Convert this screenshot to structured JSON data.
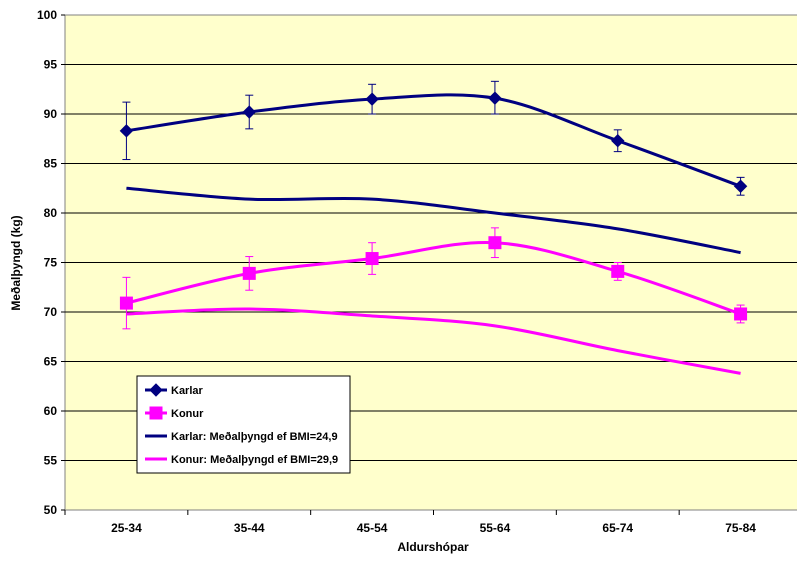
{
  "chart_data": {
    "type": "line",
    "title": "",
    "xlabel": "Aldurshópar",
    "ylabel": "Meðalþyngd (kg)",
    "categories": [
      "25-34",
      "35-44",
      "45-54",
      "55-64",
      "65-74",
      "75-84"
    ],
    "ylim": [
      50,
      100
    ],
    "yticks": [
      50,
      55,
      60,
      65,
      70,
      75,
      80,
      85,
      90,
      95,
      100
    ],
    "grid": true,
    "legend_placement": "bottom-left",
    "series": [
      {
        "name": "Karlar",
        "values": [
          88.3,
          90.2,
          91.5,
          91.6,
          87.3,
          82.7
        ],
        "error_low": [
          85.4,
          88.5,
          90.0,
          90.0,
          86.2,
          81.8
        ],
        "error_high": [
          91.2,
          91.9,
          93.0,
          93.3,
          88.4,
          83.6
        ],
        "color": "#000080",
        "marker": "diamond"
      },
      {
        "name": "Konur",
        "values": [
          70.9,
          73.9,
          75.4,
          77.0,
          74.1,
          69.8
        ],
        "error_low": [
          68.3,
          72.2,
          73.8,
          75.5,
          73.2,
          68.9
        ],
        "error_high": [
          73.5,
          75.6,
          77.0,
          78.5,
          75.0,
          70.7
        ],
        "color": "#FF00FF",
        "marker": "square"
      },
      {
        "name": "Karlar: Meðalþyngd ef BMI=24,9",
        "values": [
          82.5,
          81.4,
          81.4,
          80.0,
          78.4,
          76.0
        ],
        "color": "#000080",
        "marker": "none"
      },
      {
        "name": "Konur: Meðalþyngd ef BMI=29,9",
        "values": [
          69.8,
          70.3,
          69.6,
          68.6,
          66.1,
          63.8
        ],
        "color": "#FF00FF",
        "marker": "none"
      }
    ],
    "colors": {
      "plot_background": "#FFFFCC",
      "grid": "#000000"
    }
  }
}
